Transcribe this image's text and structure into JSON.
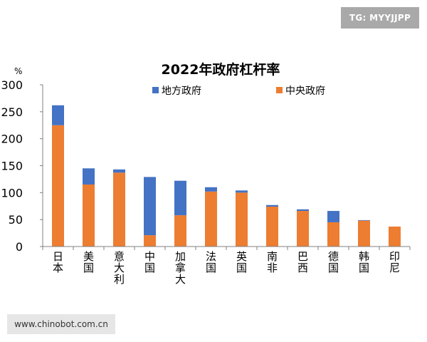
{
  "badge": "TG: MYYJJPP",
  "watermark": "www.chinobot.com.cn",
  "chart_data": {
    "type": "bar",
    "stacked": true,
    "title": "2022年政府杠杆率",
    "unit": "%",
    "ylim": [
      0,
      300
    ],
    "yticks": [
      0,
      50,
      100,
      150,
      200,
      250,
      300
    ],
    "grid": false,
    "legend_position": "top",
    "categories": [
      "日本",
      "美国",
      "意大利",
      "中国",
      "加拿大",
      "法国",
      "英国",
      "南非",
      "巴西",
      "德国",
      "韩国",
      "印尼"
    ],
    "series": [
      {
        "name": "中央政府",
        "color": "#ed7d31",
        "values": [
          225,
          115,
          137,
          21,
          58,
          102,
          100,
          74,
          66,
          45,
          48,
          37
        ]
      },
      {
        "name": "地方政府",
        "color": "#4472c4",
        "values": [
          37,
          30,
          6,
          108,
          64,
          8,
          4,
          3,
          3,
          21,
          1,
          0
        ]
      }
    ]
  }
}
